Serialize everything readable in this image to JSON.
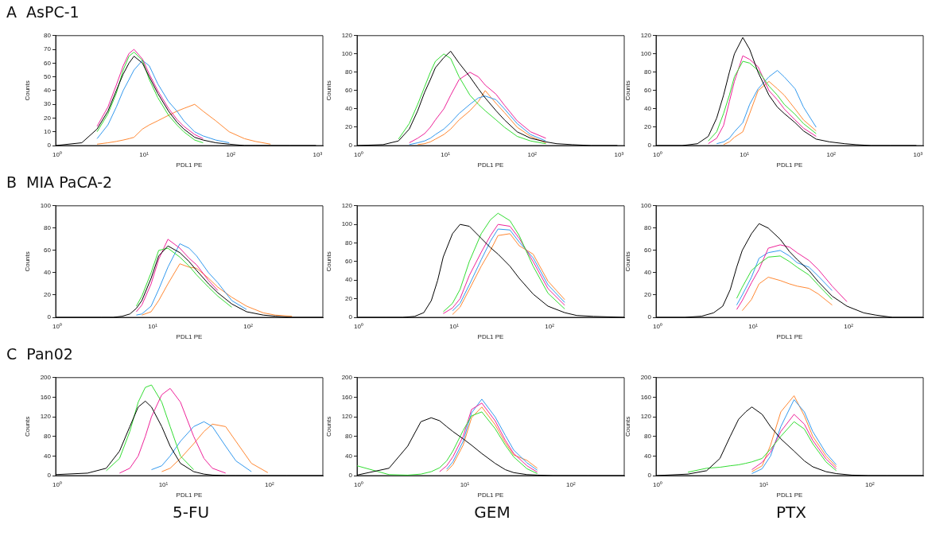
{
  "chart_data": [
    {
      "type": "line",
      "title": "A  AsPC-1",
      "xlabel": "PDL1 PE",
      "ylabel": "Counts",
      "log": "x",
      "grid": false,
      "legend": false,
      "marker": "none",
      "xlim": [
        1,
        1200
      ],
      "xticks": [
        {
          "value": 1,
          "label": "10⁰"
        },
        {
          "value": 10,
          "label": "10¹"
        },
        {
          "value": 100,
          "label": "10²"
        },
        {
          "value": 1000,
          "label": "10³"
        }
      ],
      "ylim": [
        0,
        80
      ],
      "yticks": [
        0,
        10,
        20,
        30,
        40,
        50,
        60,
        70,
        80
      ],
      "x": [
        1,
        2,
        3,
        4,
        5,
        6,
        7,
        8,
        10,
        12,
        15,
        20,
        25,
        30,
        40,
        50,
        70,
        100,
        150,
        200,
        300,
        500,
        1000
      ],
      "series": [
        {
          "color": "#000000",
          "values": [
            0,
            2,
            12,
            25,
            40,
            52,
            60,
            65,
            60,
            50,
            38,
            25,
            17,
            12,
            6,
            4,
            2,
            1,
            0,
            0,
            0,
            0,
            0
          ]
        },
        {
          "color": "#33dd33",
          "values": [
            null,
            null,
            10,
            23,
            38,
            55,
            65,
            68,
            62,
            48,
            35,
            22,
            15,
            10,
            4,
            2,
            null,
            null,
            null,
            null,
            null,
            null,
            null
          ]
        },
        {
          "color": "#ee2299",
          "values": [
            null,
            null,
            14,
            28,
            44,
            58,
            67,
            70,
            63,
            52,
            40,
            27,
            19,
            14,
            8,
            5,
            null,
            null,
            null,
            null,
            null,
            null,
            null
          ]
        },
        {
          "color": "#3399ee",
          "values": [
            null,
            null,
            5,
            15,
            28,
            40,
            48,
            55,
            62,
            58,
            45,
            32,
            25,
            18,
            10,
            7,
            4,
            2,
            null,
            null,
            null,
            null,
            null
          ]
        },
        {
          "color": "#ff8833",
          "values": [
            null,
            null,
            1,
            2,
            3,
            4,
            5,
            6,
            12,
            15,
            18,
            22,
            25,
            27,
            30,
            25,
            18,
            10,
            5,
            3,
            1,
            null,
            null
          ]
        }
      ]
    },
    {
      "type": "line",
      "xlabel": "PDL1 PE",
      "ylabel": "Counts",
      "log": "x",
      "grid": false,
      "legend": false,
      "marker": "none",
      "xlim": [
        1,
        1200
      ],
      "xticks": [
        {
          "value": 1,
          "label": "10⁰"
        },
        {
          "value": 10,
          "label": "10¹"
        },
        {
          "value": 100,
          "label": "10²"
        },
        {
          "value": 1000,
          "label": "10³"
        }
      ],
      "ylim": [
        0,
        120
      ],
      "yticks": [
        0,
        20,
        40,
        60,
        80,
        100,
        120
      ],
      "x": [
        1,
        2,
        3,
        4,
        5,
        6,
        7,
        8,
        10,
        12,
        15,
        20,
        25,
        30,
        40,
        50,
        70,
        100,
        150,
        200,
        300,
        500,
        1000
      ],
      "series": [
        {
          "color": "#000000",
          "values": [
            0,
            1,
            5,
            18,
            38,
            58,
            72,
            85,
            96,
            103,
            90,
            75,
            62,
            52,
            38,
            28,
            15,
            8,
            4,
            2,
            1,
            0,
            0
          ]
        },
        {
          "color": "#33dd33",
          "values": [
            null,
            null,
            7,
            24,
            45,
            64,
            80,
            92,
            100,
            95,
            75,
            55,
            45,
            38,
            28,
            20,
            10,
            5,
            2,
            null,
            null,
            null,
            null
          ]
        },
        {
          "color": "#ee2299",
          "values": [
            null,
            null,
            null,
            3,
            8,
            13,
            20,
            28,
            40,
            55,
            72,
            80,
            75,
            66,
            56,
            44,
            27,
            15,
            8,
            null,
            null,
            null,
            null
          ]
        },
        {
          "color": "#3399ee",
          "values": [
            null,
            null,
            null,
            1,
            3,
            5,
            8,
            12,
            18,
            25,
            35,
            45,
            52,
            54,
            50,
            40,
            24,
            12,
            5,
            null,
            null,
            null,
            null
          ]
        },
        {
          "color": "#ff8833",
          "values": [
            null,
            null,
            null,
            null,
            1,
            2,
            4,
            7,
            12,
            18,
            28,
            38,
            48,
            60,
            46,
            36,
            20,
            10,
            3,
            null,
            null,
            null,
            null
          ]
        }
      ]
    },
    {
      "type": "line",
      "xlabel": "PDL1 PE",
      "ylabel": "Counts",
      "log": "x",
      "grid": false,
      "legend": false,
      "marker": "none",
      "xlim": [
        1,
        1200
      ],
      "xticks": [
        {
          "value": 1,
          "label": "10⁰"
        },
        {
          "value": 10,
          "label": "10¹"
        },
        {
          "value": 100,
          "label": "10²"
        },
        {
          "value": 1000,
          "label": "10³"
        }
      ],
      "ylim": [
        0,
        120
      ],
      "yticks": [
        0,
        20,
        40,
        60,
        80,
        100,
        120
      ],
      "x": [
        1,
        2,
        3,
        4,
        5,
        6,
        7,
        8,
        10,
        12,
        15,
        20,
        25,
        30,
        40,
        50,
        70,
        100,
        150,
        200,
        300,
        500,
        1000
      ],
      "series": [
        {
          "color": "#000000",
          "values": [
            0,
            0,
            2,
            10,
            30,
            55,
            80,
            100,
            118,
            105,
            80,
            55,
            42,
            35,
            25,
            16,
            7,
            4,
            2,
            1,
            0,
            0,
            0
          ]
        },
        {
          "color": "#33dd33",
          "values": [
            null,
            null,
            null,
            5,
            15,
            35,
            55,
            75,
            92,
            90,
            82,
            65,
            55,
            45,
            34,
            24,
            13,
            null,
            null,
            null,
            null,
            null,
            null
          ]
        },
        {
          "color": "#ee2299",
          "values": [
            null,
            null,
            null,
            2,
            8,
            22,
            48,
            70,
            98,
            94,
            86,
            60,
            50,
            40,
            28,
            19,
            10,
            null,
            null,
            null,
            null,
            null,
            null
          ]
        },
        {
          "color": "#3399ee",
          "values": [
            null,
            null,
            null,
            null,
            2,
            4,
            8,
            15,
            25,
            45,
            62,
            75,
            82,
            75,
            62,
            42,
            20,
            null,
            null,
            null,
            null,
            null,
            null
          ]
        },
        {
          "color": "#ff8833",
          "values": [
            null,
            null,
            null,
            null,
            null,
            1,
            4,
            9,
            15,
            35,
            60,
            70,
            62,
            55,
            40,
            28,
            16,
            null,
            null,
            null,
            null,
            null,
            null
          ]
        }
      ]
    },
    {
      "type": "line",
      "title": "B  MIA PaCA-2",
      "xlabel": "PDL1 PE",
      "ylabel": "Counts",
      "log": "x",
      "grid": false,
      "legend": false,
      "marker": "none",
      "xlim": [
        1,
        630
      ],
      "xticks": [
        {
          "value": 1,
          "label": "10⁰"
        },
        {
          "value": 10,
          "label": "10¹"
        },
        {
          "value": 100,
          "label": "10²"
        }
      ],
      "ylim": [
        0,
        100
      ],
      "yticks": [
        0,
        20,
        40,
        60,
        80,
        100
      ],
      "x": [
        1,
        2,
        3,
        4,
        5,
        6,
        7,
        8,
        10,
        12,
        15,
        20,
        25,
        30,
        40,
        50,
        70,
        100,
        150,
        200,
        300,
        630
      ],
      "series": [
        {
          "color": "#000000",
          "values": [
            0,
            0,
            0,
            0,
            1,
            3,
            8,
            15,
            35,
            55,
            64,
            58,
            50,
            42,
            30,
            22,
            12,
            5,
            2,
            1,
            0,
            0
          ]
        },
        {
          "color": "#33dd33",
          "values": [
            null,
            null,
            null,
            null,
            null,
            null,
            10,
            19,
            40,
            60,
            62,
            54,
            46,
            38,
            27,
            19,
            9,
            null,
            null,
            null,
            null,
            null
          ]
        },
        {
          "color": "#ee2299",
          "values": [
            null,
            null,
            null,
            null,
            null,
            null,
            5,
            11,
            30,
            52,
            70,
            62,
            53,
            47,
            33,
            24,
            null,
            null,
            null,
            null,
            null,
            null
          ]
        },
        {
          "color": "#3399ee",
          "values": [
            null,
            null,
            null,
            null,
            null,
            null,
            2,
            3,
            10,
            25,
            45,
            66,
            62,
            55,
            40,
            31,
            15,
            7,
            null,
            null,
            null,
            null
          ]
        },
        {
          "color": "#ff8833",
          "values": [
            null,
            null,
            null,
            null,
            null,
            null,
            null,
            2,
            5,
            15,
            30,
            48,
            45,
            44,
            35,
            27,
            18,
            10,
            4,
            2,
            1,
            null
          ]
        }
      ]
    },
    {
      "type": "line",
      "xlabel": "PDL1 PE",
      "ylabel": "Counts",
      "log": "x",
      "grid": false,
      "legend": false,
      "marker": "none",
      "xlim": [
        1,
        630
      ],
      "xticks": [
        {
          "value": 1,
          "label": "10⁰"
        },
        {
          "value": 10,
          "label": "10¹"
        },
        {
          "value": 100,
          "label": "10²"
        }
      ],
      "ylim": [
        0,
        120
      ],
      "yticks": [
        0,
        20,
        40,
        60,
        80,
        100,
        120
      ],
      "x": [
        1,
        2,
        3,
        4,
        5,
        6,
        7,
        8,
        10,
        12,
        15,
        20,
        25,
        30,
        40,
        50,
        70,
        100,
        150,
        200,
        300,
        630
      ],
      "series": [
        {
          "color": "#000000",
          "values": [
            0,
            0,
            0,
            1,
            5,
            18,
            40,
            65,
            90,
            100,
            98,
            85,
            75,
            68,
            55,
            42,
            25,
            12,
            5,
            2,
            1,
            0
          ]
        },
        {
          "color": "#33dd33",
          "values": [
            null,
            null,
            null,
            null,
            null,
            null,
            null,
            6,
            15,
            30,
            60,
            90,
            105,
            112,
            104,
            88,
            55,
            26,
            9,
            null,
            null,
            null
          ]
        },
        {
          "color": "#ee2299",
          "values": [
            null,
            null,
            null,
            null,
            null,
            null,
            null,
            4,
            10,
            20,
            45,
            70,
            88,
            100,
            98,
            85,
            60,
            31,
            13,
            null,
            null,
            null
          ]
        },
        {
          "color": "#3399ee",
          "values": [
            null,
            null,
            null,
            null,
            null,
            null,
            null,
            null,
            7,
            15,
            35,
            62,
            82,
            95,
            94,
            81,
            64,
            35,
            16,
            null,
            null,
            null
          ]
        },
        {
          "color": "#ff8833",
          "values": [
            null,
            null,
            null,
            null,
            null,
            null,
            null,
            null,
            3,
            11,
            30,
            55,
            72,
            88,
            90,
            77,
            68,
            39,
            19,
            null,
            null,
            null
          ]
        }
      ]
    },
    {
      "type": "line",
      "xlabel": "PDL1 PE",
      "ylabel": "Counts",
      "log": "x",
      "grid": false,
      "legend": false,
      "marker": "none",
      "xlim": [
        1,
        630
      ],
      "xticks": [
        {
          "value": 1,
          "label": "10⁰"
        },
        {
          "value": 10,
          "label": "10¹"
        },
        {
          "value": 100,
          "label": "10²"
        }
      ],
      "ylim": [
        0,
        100
      ],
      "yticks": [
        0,
        20,
        40,
        60,
        80,
        100
      ],
      "x": [
        1,
        2,
        3,
        4,
        5,
        6,
        7,
        8,
        10,
        12,
        15,
        20,
        25,
        30,
        40,
        50,
        70,
        100,
        150,
        200,
        300,
        630
      ],
      "series": [
        {
          "color": "#000000",
          "values": [
            0,
            0,
            1,
            4,
            10,
            25,
            45,
            60,
            75,
            84,
            80,
            70,
            59,
            52,
            42,
            32,
            19,
            10,
            4,
            2,
            0,
            0
          ]
        },
        {
          "color": "#33dd33",
          "values": [
            null,
            null,
            null,
            null,
            null,
            null,
            17,
            27,
            42,
            48,
            54,
            55,
            50,
            45,
            38,
            29,
            16,
            null,
            null,
            null,
            null,
            null
          ]
        },
        {
          "color": "#ee2299",
          "values": [
            null,
            null,
            null,
            null,
            null,
            null,
            7,
            15,
            31,
            43,
            62,
            65,
            63,
            58,
            51,
            43,
            28,
            14,
            null,
            null,
            null,
            null
          ]
        },
        {
          "color": "#3399ee",
          "values": [
            null,
            null,
            null,
            null,
            null,
            null,
            11,
            20,
            36,
            53,
            58,
            60,
            55,
            49,
            45,
            37,
            24,
            null,
            null,
            null,
            null,
            null
          ]
        },
        {
          "color": "#ff8833",
          "values": [
            null,
            null,
            null,
            null,
            null,
            null,
            null,
            6,
            16,
            30,
            36,
            33,
            30,
            28,
            26,
            21,
            11,
            null,
            null,
            null,
            null,
            null
          ]
        }
      ]
    },
    {
      "type": "line",
      "title": "C  Pan02",
      "xlabel": "PDL1 PE",
      "ylabel": "Counts",
      "annotations": [
        "5-FU"
      ],
      "log": "x",
      "grid": false,
      "legend": false,
      "marker": "none",
      "xlim": [
        1,
        330
      ],
      "xticks": [
        {
          "value": 1,
          "label": "10⁰"
        },
        {
          "value": 10,
          "label": "10¹"
        },
        {
          "value": 100,
          "label": "10²"
        }
      ],
      "ylim": [
        0,
        200
      ],
      "yticks": [
        0,
        40,
        80,
        120,
        160,
        200
      ],
      "x": [
        1,
        2,
        3,
        4,
        5,
        6,
        7,
        8,
        10,
        12,
        15,
        20,
        25,
        30,
        40,
        50,
        70,
        100,
        150,
        200,
        330
      ],
      "series": [
        {
          "color": "#000000",
          "values": [
            2,
            5,
            15,
            50,
            100,
            140,
            152,
            140,
            100,
            60,
            25,
            8,
            3,
            1,
            0,
            0,
            0,
            0,
            0,
            0,
            0
          ]
        },
        {
          "color": "#33dd33",
          "values": [
            null,
            null,
            10,
            35,
            90,
            150,
            180,
            185,
            150,
            100,
            40,
            12,
            null,
            null,
            null,
            null,
            null,
            null,
            null,
            null,
            null
          ]
        },
        {
          "color": "#ee2299",
          "values": [
            null,
            null,
            null,
            5,
            15,
            40,
            80,
            120,
            165,
            178,
            150,
            80,
            35,
            15,
            5,
            null,
            null,
            null,
            null,
            null,
            null
          ]
        },
        {
          "color": "#3399ee",
          "values": [
            null,
            null,
            null,
            null,
            null,
            null,
            null,
            12,
            20,
            40,
            70,
            100,
            110,
            100,
            60,
            30,
            8,
            null,
            null,
            null,
            null
          ]
        },
        {
          "color": "#ff8833",
          "values": [
            null,
            null,
            null,
            null,
            null,
            null,
            null,
            null,
            8,
            15,
            35,
            65,
            90,
            105,
            100,
            70,
            25,
            6,
            null,
            null,
            null
          ]
        }
      ]
    },
    {
      "type": "line",
      "xlabel": "PDL1 PE",
      "ylabel": "Counts",
      "annotations": [
        "GEM"
      ],
      "log": "x",
      "grid": false,
      "legend": false,
      "marker": "none",
      "xlim": [
        1,
        330
      ],
      "xticks": [
        {
          "value": 1,
          "label": "10⁰"
        },
        {
          "value": 10,
          "label": "10¹"
        },
        {
          "value": 100,
          "label": "10²"
        }
      ],
      "ylim": [
        0,
        200
      ],
      "yticks": [
        0,
        40,
        80,
        120,
        160,
        200
      ],
      "x": [
        1,
        2,
        3,
        4,
        5,
        6,
        7,
        8,
        10,
        12,
        15,
        20,
        25,
        30,
        40,
        50,
        70,
        100,
        150,
        200,
        330
      ],
      "series": [
        {
          "color": "#000000",
          "values": [
            1,
            15,
            60,
            110,
            118,
            112,
            100,
            90,
            75,
            62,
            45,
            25,
            12,
            6,
            2,
            1,
            0,
            0,
            0,
            0,
            0
          ]
        },
        {
          "color": "#33dd33",
          "values": [
            20,
            2,
            1,
            3,
            8,
            16,
            30,
            50,
            92,
            122,
            130,
            96,
            62,
            38,
            14,
            4,
            null,
            null,
            null,
            null,
            null
          ]
        },
        {
          "color": "#ee2299",
          "values": [
            null,
            null,
            null,
            null,
            null,
            8,
            20,
            38,
            80,
            135,
            148,
            112,
            72,
            45,
            20,
            7,
            null,
            null,
            null,
            null,
            null
          ]
        },
        {
          "color": "#3399ee",
          "values": [
            null,
            null,
            null,
            null,
            null,
            null,
            13,
            28,
            70,
            128,
            156,
            120,
            82,
            52,
            26,
            11,
            null,
            null,
            null,
            null,
            null
          ]
        },
        {
          "color": "#ff8833",
          "values": [
            null,
            null,
            null,
            null,
            null,
            null,
            9,
            22,
            62,
            118,
            140,
            104,
            67,
            42,
            31,
            15,
            null,
            null,
            null,
            null,
            null
          ]
        }
      ]
    },
    {
      "type": "line",
      "xlabel": "PDL1 PE",
      "ylabel": "Counts",
      "annotations": [
        "PTX"
      ],
      "log": "x",
      "grid": false,
      "legend": false,
      "marker": "none",
      "xlim": [
        1,
        330
      ],
      "xticks": [
        {
          "value": 1,
          "label": "10⁰"
        },
        {
          "value": 10,
          "label": "10¹"
        },
        {
          "value": 100,
          "label": "10²"
        }
      ],
      "ylim": [
        0,
        200
      ],
      "yticks": [
        0,
        40,
        80,
        120,
        160,
        200
      ],
      "x": [
        1,
        2,
        3,
        4,
        5,
        6,
        7,
        8,
        10,
        12,
        15,
        20,
        25,
        30,
        40,
        50,
        70,
        100,
        150,
        200,
        330
      ],
      "series": [
        {
          "color": "#000000",
          "values": [
            0,
            3,
            10,
            35,
            80,
            115,
            130,
            140,
            125,
            100,
            75,
            50,
            30,
            18,
            8,
            4,
            1,
            0,
            0,
            0,
            0
          ]
        },
        {
          "color": "#33dd33",
          "values": [
            null,
            7,
            15,
            17,
            20,
            22,
            25,
            28,
            35,
            54,
            80,
            110,
            95,
            65,
            28,
            10,
            null,
            null,
            null,
            null,
            null
          ]
        },
        {
          "color": "#ee2299",
          "values": [
            null,
            null,
            null,
            null,
            null,
            null,
            null,
            12,
            27,
            48,
            90,
            125,
            105,
            72,
            34,
            14,
            null,
            null,
            null,
            null,
            null
          ]
        },
        {
          "color": "#3399ee",
          "values": [
            null,
            null,
            null,
            null,
            null,
            null,
            null,
            4,
            14,
            40,
            100,
            155,
            130,
            90,
            46,
            22,
            null,
            null,
            null,
            null,
            null
          ]
        },
        {
          "color": "#ff8833",
          "values": [
            null,
            null,
            null,
            null,
            null,
            null,
            null,
            8,
            20,
            62,
            130,
            163,
            122,
            80,
            40,
            18,
            null,
            null,
            null,
            null,
            null
          ]
        }
      ]
    }
  ]
}
